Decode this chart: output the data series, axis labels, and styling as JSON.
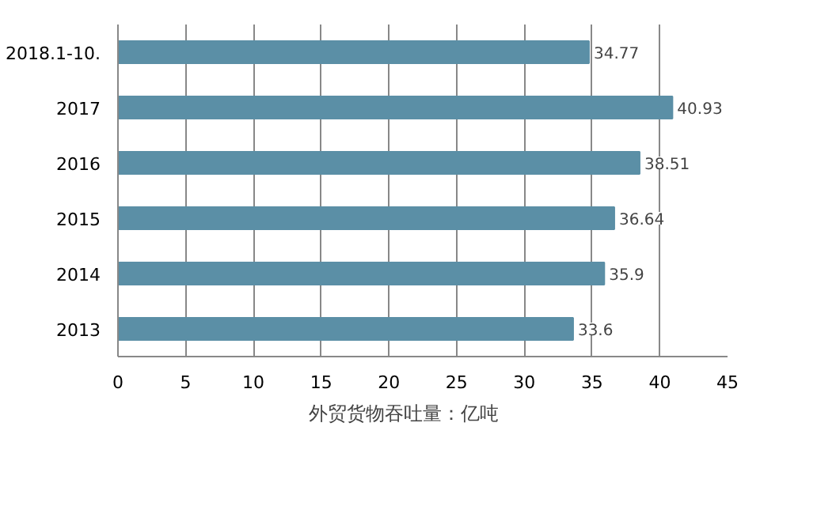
{
  "chart_data": {
    "type": "bar",
    "orientation": "horizontal",
    "categories": [
      "2018.1-10.",
      "2017",
      "2016",
      "2015",
      "2014",
      "2013"
    ],
    "series": [
      {
        "name": "外贸货物吞吐量：亿吨",
        "color": "#5b8fa6",
        "values": [
          34.77,
          40.93,
          38.51,
          36.64,
          35.9,
          33.6
        ]
      }
    ],
    "xlim": [
      0,
      45
    ],
    "xticks": [
      0,
      5,
      10,
      15,
      20,
      25,
      30,
      35,
      40,
      45
    ],
    "grid": "x",
    "legend": "bottom",
    "data_labels": true
  }
}
